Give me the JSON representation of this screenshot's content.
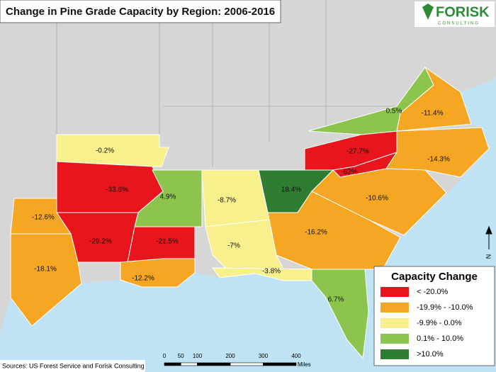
{
  "title": "Change in Pine Grade Capacity by Region: 2006-2016",
  "logo": {
    "name": "FORISK",
    "tagline": "CONSULTING"
  },
  "legend": {
    "title": "Capacity Change",
    "classes": [
      {
        "label": "< -20.0%",
        "color": "#e8161c"
      },
      {
        "label": "-19.9% - -10.0%",
        "color": "#f5a623"
      },
      {
        "label": "-9.9% - 0.0%",
        "color": "#f8f08c"
      },
      {
        "label": "0.1% - 10.0%",
        "color": "#8dc44e"
      },
      {
        "label": ">10.0%",
        "color": "#2f7d33"
      }
    ]
  },
  "regions": [
    {
      "label": "-0.2%",
      "class": 2
    },
    {
      "label": "-33.6%",
      "class": 0
    },
    {
      "label": "4.9%",
      "class": 3
    },
    {
      "label": "-8.7%",
      "class": 2
    },
    {
      "label": "18.4%",
      "class": 4
    },
    {
      "label": "-27.7%",
      "class": 0
    },
    {
      "label": "-62%",
      "class": 0
    },
    {
      "label": "0.5%",
      "class": 3
    },
    {
      "label": "-11.4%",
      "class": 1
    },
    {
      "label": "-14.3%",
      "class": 1
    },
    {
      "label": "-10.6%",
      "class": 1
    },
    {
      "label": "-16.2%",
      "class": 1
    },
    {
      "label": "-7%",
      "class": 2
    },
    {
      "label": "-3.8%",
      "class": 2
    },
    {
      "label": "6.7%",
      "class": 3
    },
    {
      "label": "-21.5%",
      "class": 0
    },
    {
      "label": "-29.2%",
      "class": 0
    },
    {
      "label": "-12.2%",
      "class": 1
    },
    {
      "label": "-12.6%",
      "class": 1
    },
    {
      "label": "-18.1%",
      "class": 1
    }
  ],
  "scale": {
    "ticks": [
      0,
      50,
      100,
      200,
      300,
      400
    ],
    "unit": "Miles"
  },
  "north": "N",
  "source": "Sources: US Forest Service and Forisk Consulting"
}
